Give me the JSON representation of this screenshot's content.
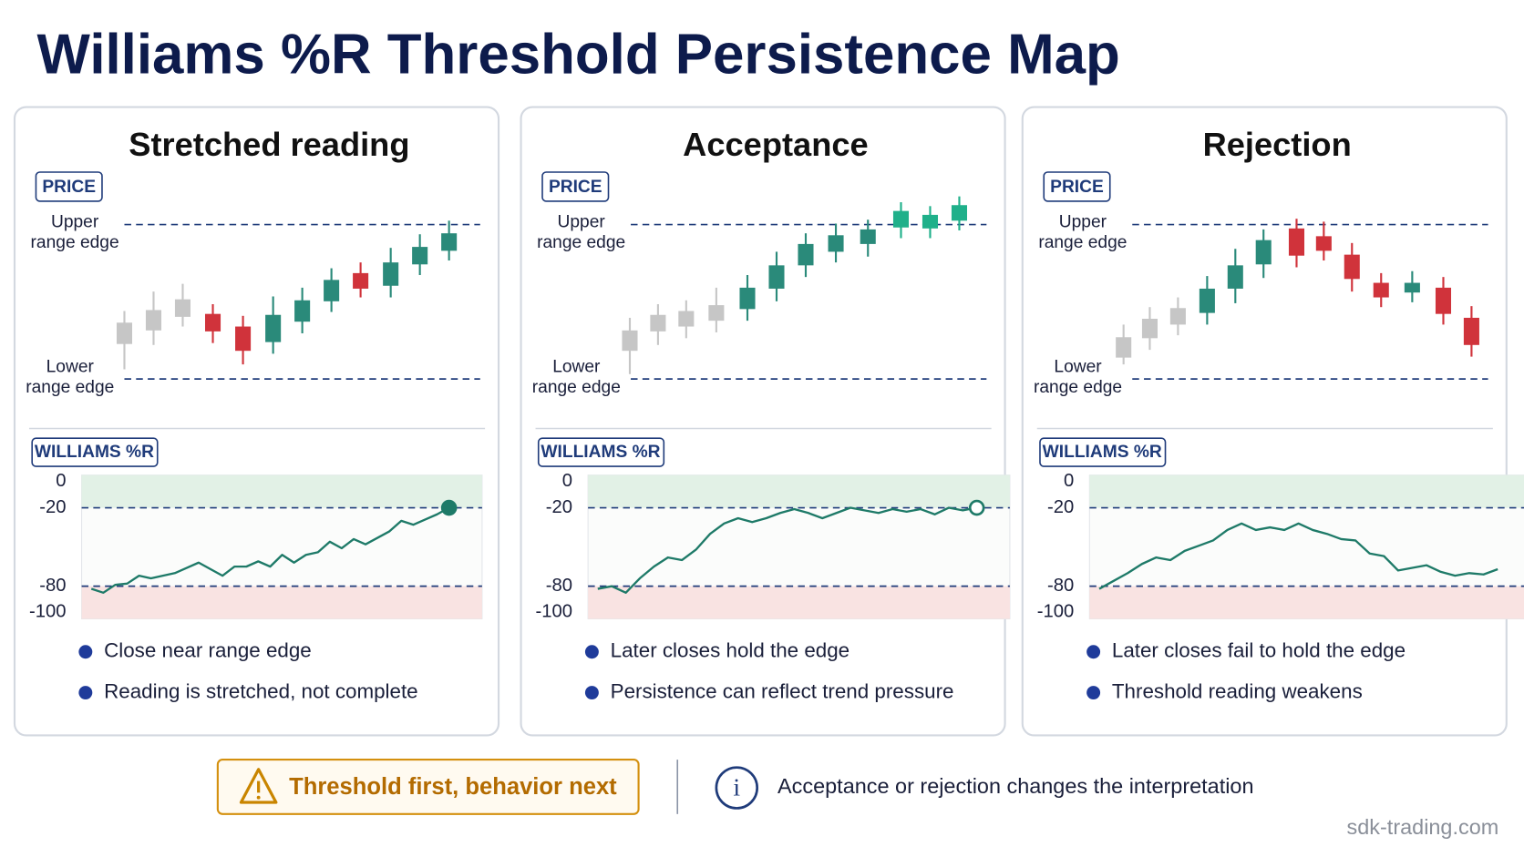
{
  "title": "Williams %R Threshold Persistence Map",
  "panels": [
    {
      "heading": "Stretched reading",
      "price_tag": "PRICE",
      "upper_edge": [
        "Upper",
        "range edge"
      ],
      "lower_edge": [
        "Lower",
        "range edge"
      ],
      "bullets": [
        "Close near range edge",
        "Reading is stretched, not complete"
      ]
    },
    {
      "heading": "Acceptance",
      "price_tag": "PRICE",
      "upper_edge": [
        "Upper",
        "range edge"
      ],
      "lower_edge": [
        "Lower",
        "range edge"
      ],
      "bullets": [
        "Later closes hold the edge",
        "Persistence can reflect trend pressure"
      ]
    },
    {
      "heading": "Rejection",
      "price_tag": "PRICE",
      "upper_edge": [
        "Upper",
        "range edge"
      ],
      "lower_edge": [
        "Lower",
        "range edge"
      ],
      "bullets": [
        "Later closes fail to hold the edge",
        "Threshold reading weakens"
      ]
    }
  ],
  "chart_data": [
    {
      "type": "line",
      "label": "WILLIAMS %R",
      "ylim": [
        -105,
        5
      ],
      "yticks": [
        0,
        -20,
        -80,
        -100
      ],
      "thresholds": [
        -20,
        -80
      ],
      "color": "#1e7a68",
      "end_marker": "filled",
      "values": [
        -82,
        -85,
        -79,
        -78,
        -72,
        -74,
        -72,
        -70,
        -66,
        -62,
        -67,
        -72,
        -65,
        -65,
        -61,
        -65,
        -56,
        -62,
        -56,
        -54,
        -46,
        -51,
        -44,
        -48,
        -43,
        -38,
        -30,
        -33,
        -29,
        -25,
        -20
      ]
    },
    {
      "type": "line",
      "label": "WILLIAMS %R",
      "ylim": [
        -105,
        5
      ],
      "yticks": [
        0,
        -20,
        -80,
        -100
      ],
      "thresholds": [
        -20,
        -80
      ],
      "color": "#1e7a68",
      "end_marker": "hollow",
      "values": [
        -82,
        -80,
        -85,
        -74,
        -65,
        -58,
        -60,
        -52,
        -40,
        -32,
        -28,
        -31,
        -28,
        -24,
        -21,
        -24,
        -28,
        -24,
        -20,
        -22,
        -24,
        -21,
        -23,
        -21,
        -25,
        -20,
        -22,
        -20
      ]
    },
    {
      "type": "line",
      "label": "WILLIAMS %R",
      "ylim": [
        -105,
        5
      ],
      "yticks": [
        0,
        -20,
        -80,
        -100
      ],
      "thresholds": [
        -20,
        -80
      ],
      "color": "#1e7a68",
      "end_marker": "none",
      "values": [
        -82,
        -76,
        -70,
        -63,
        -58,
        -60,
        -53,
        -49,
        -45,
        -37,
        -32,
        -37,
        -35,
        -37,
        -32,
        -37,
        -40,
        -44,
        -45,
        -55,
        -57,
        -68,
        -66,
        -64,
        -69,
        -72,
        -70,
        -71,
        -67
      ]
    }
  ],
  "footer": {
    "warning": "Threshold first, behavior next",
    "info": "Acceptance or rejection changes the interpretation",
    "watermark": "sdk-trading.com"
  }
}
